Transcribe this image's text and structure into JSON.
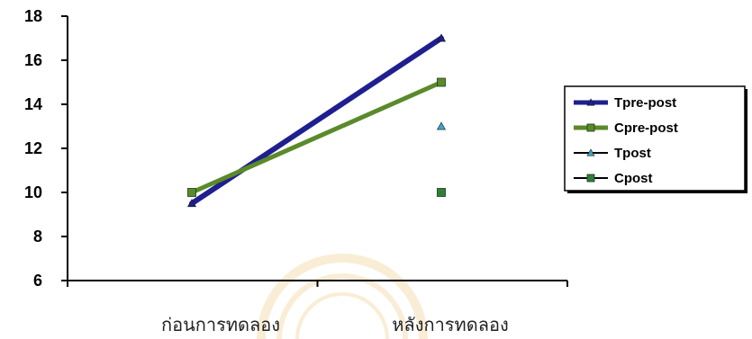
{
  "chart_data": {
    "type": "line",
    "categories": [
      "ก่อนการทดลอง",
      "หลังการทดลอง"
    ],
    "ylim": [
      6,
      18
    ],
    "yticks": [
      6,
      8,
      10,
      12,
      14,
      16,
      18
    ],
    "grid": false,
    "legend_position": "right",
    "series": [
      {
        "name": "Tpre-post",
        "values": [
          9.5,
          17
        ],
        "color": "#1f1f8f",
        "marker": "triangle",
        "line": true
      },
      {
        "name": "Cpre-post",
        "values": [
          10,
          15
        ],
        "color": "#5a8a2a",
        "marker": "square",
        "line": true
      },
      {
        "name": "Tpost",
        "values": [
          null,
          13
        ],
        "color": "#3aa6c8",
        "marker": "triangle",
        "line": false
      },
      {
        "name": "Cpost",
        "values": [
          null,
          10
        ],
        "color": "#2f7f3a",
        "marker": "square",
        "line": false
      }
    ],
    "title": "",
    "xlabel": "",
    "ylabel": ""
  }
}
